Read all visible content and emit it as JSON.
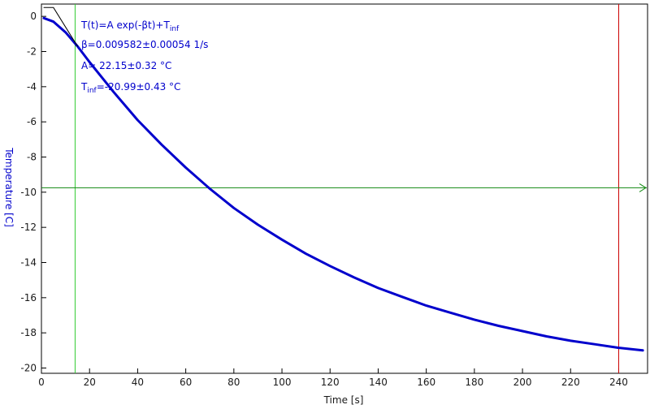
{
  "chart_data": {
    "type": "line",
    "xlabel": "Time [s]",
    "ylabel": "Temperature [C]",
    "xlim": [
      0,
      252
    ],
    "ylim": [
      -20.3,
      0.7
    ],
    "xticks": [
      0,
      20,
      40,
      60,
      80,
      100,
      120,
      140,
      160,
      180,
      200,
      220,
      240
    ],
    "yticks": [
      0,
      -2,
      -4,
      -6,
      -8,
      -10,
      -12,
      -14,
      -16,
      -18,
      -20
    ],
    "grid": false,
    "series": [
      {
        "name": "",
        "color": "#0000cc",
        "x": [
          1,
          5,
          10,
          15,
          20,
          30,
          40,
          50,
          60,
          70,
          80,
          90,
          100,
          110,
          120,
          130,
          140,
          150,
          160,
          170,
          180,
          190,
          200,
          210,
          220,
          230,
          240,
          250
        ],
        "y": [
          -0.1,
          -0.3,
          -0.9,
          -1.7,
          -2.6,
          -4.3,
          -5.9,
          -7.3,
          -8.6,
          -9.8,
          -10.9,
          -11.85,
          -12.7,
          -13.5,
          -14.2,
          -14.85,
          -15.45,
          -15.95,
          -16.45,
          -16.85,
          -17.25,
          -17.6,
          -17.9,
          -18.2,
          -18.45,
          -18.65,
          -18.85,
          -19.0
        ]
      },
      {
        "name": "",
        "color": "#000000",
        "x": [
          1,
          5,
          10,
          15
        ],
        "y": [
          0.5,
          0.5,
          -0.6,
          -1.7
        ]
      }
    ],
    "cursors": {
      "vertical_left_x": 14,
      "vertical_right_x": 240,
      "horizontal_y": -9.75,
      "colors": {
        "vertical_left": "#33cc33",
        "vertical_right": "#cc0000",
        "horizontal": "#118811"
      }
    },
    "annotations": {
      "color": "#0000cc",
      "line1_main": "T(t)=A exp(-βt)+T",
      "line1_sub": "inf",
      "line2": "β=0.009582±0.00054 1/s",
      "line3": "A= 22.15±0.32 °C",
      "line4_main": "T",
      "line4_sub": "inf",
      "line4_rest": "=-20.99±0.43 °C"
    }
  }
}
